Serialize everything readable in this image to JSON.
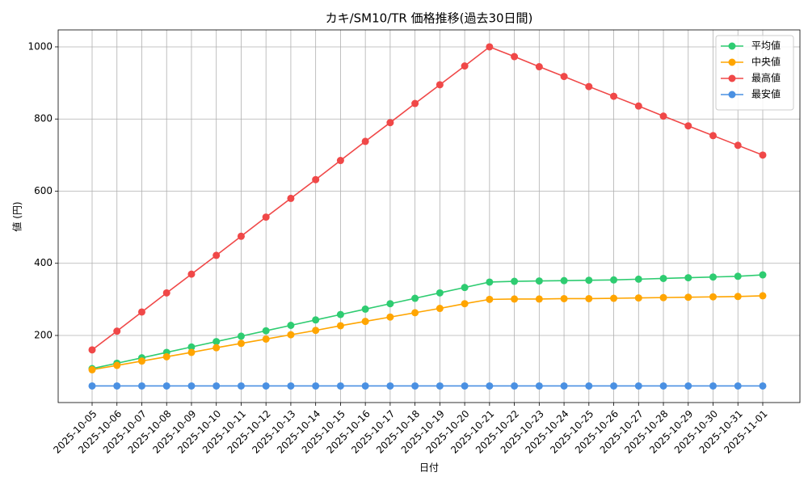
{
  "chart_data": {
    "type": "line",
    "title": "カキ/SM10/TR 価格推移(過去30日間)",
    "x_label": "日付",
    "y_label": "値 (円)",
    "categories": [
      "2025-10-05",
      "2025-10-06",
      "2025-10-07",
      "2025-10-08",
      "2025-10-09",
      "2025-10-10",
      "2025-10-11",
      "2025-10-12",
      "2025-10-13",
      "2025-10-14",
      "2025-10-15",
      "2025-10-16",
      "2025-10-17",
      "2025-10-18",
      "2025-10-19",
      "2025-10-20",
      "2025-10-21",
      "2025-10-22",
      "2025-10-23",
      "2025-10-24",
      "2025-10-25",
      "2025-10-26",
      "2025-10-27",
      "2025-10-28",
      "2025-10-29",
      "2025-10-30",
      "2025-10-31",
      "2025-11-01"
    ],
    "series": [
      {
        "name": "平均値",
        "color": "#2ecc71",
        "values": [
          108,
          123,
          138,
          153,
          168,
          183,
          198,
          213,
          228,
          243,
          258,
          273,
          288,
          303,
          318,
          333,
          348,
          350,
          351,
          352,
          353,
          354,
          356,
          358,
          360,
          362,
          364,
          368
        ]
      },
      {
        "name": "中央値",
        "color": "#ffa500",
        "values": [
          105,
          117,
          129,
          141,
          153,
          166,
          178,
          190,
          202,
          214,
          227,
          239,
          251,
          263,
          275,
          288,
          300,
          301,
          301,
          302,
          302,
          303,
          304,
          305,
          306,
          307,
          308,
          310
        ]
      },
      {
        "name": "最高値",
        "color": "#f04848",
        "values": [
          160,
          212,
          265,
          318,
          370,
          422,
          475,
          528,
          580,
          632,
          685,
          738,
          790,
          843,
          895,
          947,
          1000,
          973,
          945,
          918,
          890,
          863,
          836,
          808,
          781,
          754,
          727,
          700
        ]
      },
      {
        "name": "最安値",
        "color": "#4a90e2",
        "values": [
          60,
          60,
          60,
          60,
          60,
          60,
          60,
          60,
          60,
          60,
          60,
          60,
          60,
          60,
          60,
          60,
          60,
          60,
          60,
          60,
          60,
          60,
          60,
          60,
          60,
          60,
          60,
          60
        ]
      }
    ],
    "ylim": [
      14,
      1047
    ],
    "yticks": [
      200,
      400,
      600,
      800,
      1000
    ],
    "grid": true,
    "legend": "upper right"
  }
}
